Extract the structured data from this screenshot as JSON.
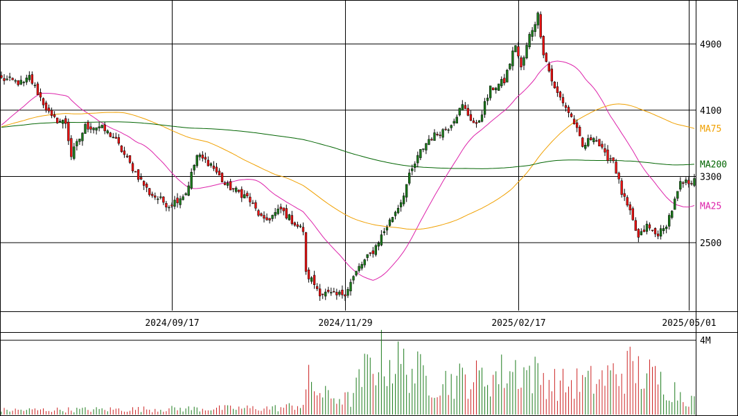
{
  "chart_data": {
    "type": "candlestick",
    "price_axis": {
      "ticks": [
        2500,
        3300,
        4100,
        4900
      ],
      "range": [
        1680,
        5430
      ]
    },
    "date_axis": {
      "labels": [
        {
          "text": "2024/09/17",
          "bar_index": 61
        },
        {
          "text": "2024/11/29",
          "bar_index": 123
        },
        {
          "text": "2025/02/17",
          "bar_index": 185
        },
        {
          "text": "2025/05/01",
          "bar_index": 246
        }
      ],
      "bar_count": 249
    },
    "volume_axis": {
      "ticks": [
        "4M"
      ],
      "tick_values": [
        4000000
      ],
      "max": 4400000
    },
    "moving_averages": [
      {
        "name": "MA25",
        "color": "#dd22aa",
        "last": 2950
      },
      {
        "name": "MA75",
        "color": "#f0a000",
        "last": 3880
      },
      {
        "name": "MA200",
        "color": "#006400",
        "last": 3450
      }
    ],
    "price_path": [
      [
        0,
        4480
      ],
      [
        8,
        4420
      ],
      [
        10,
        4500
      ],
      [
        14,
        4250
      ],
      [
        18,
        4000
      ],
      [
        23,
        3950
      ],
      [
        25,
        3550
      ],
      [
        30,
        3900
      ],
      [
        35,
        3900
      ],
      [
        40,
        3780
      ],
      [
        46,
        3450
      ],
      [
        53,
        3100
      ],
      [
        60,
        2950
      ],
      [
        66,
        3100
      ],
      [
        70,
        3550
      ],
      [
        75,
        3450
      ],
      [
        80,
        3200
      ],
      [
        88,
        3050
      ],
      [
        94,
        2750
      ],
      [
        100,
        2900
      ],
      [
        106,
        2700
      ],
      [
        108,
        2650
      ],
      [
        109,
        2120
      ],
      [
        111,
        2050
      ],
      [
        114,
        1900
      ],
      [
        120,
        1860
      ],
      [
        123,
        1900
      ],
      [
        128,
        2200
      ],
      [
        133,
        2400
      ],
      [
        138,
        2700
      ],
      [
        143,
        3000
      ],
      [
        146,
        3300
      ],
      [
        150,
        3600
      ],
      [
        153,
        3750
      ],
      [
        160,
        3900
      ],
      [
        165,
        4150
      ],
      [
        170,
        3900
      ],
      [
        175,
        4350
      ],
      [
        180,
        4450
      ],
      [
        184,
        4900
      ],
      [
        186,
        4600
      ],
      [
        189,
        5000
      ],
      [
        192,
        5250
      ],
      [
        194,
        4800
      ],
      [
        198,
        4350
      ],
      [
        201,
        4200
      ],
      [
        205,
        3950
      ],
      [
        208,
        3650
      ],
      [
        212,
        3800
      ],
      [
        216,
        3550
      ],
      [
        219,
        3500
      ],
      [
        222,
        3100
      ],
      [
        225,
        2850
      ],
      [
        228,
        2550
      ],
      [
        231,
        2700
      ],
      [
        234,
        2600
      ],
      [
        237,
        2650
      ],
      [
        240,
        2900
      ],
      [
        243,
        3200
      ],
      [
        247,
        3250
      ],
      [
        248,
        3300
      ]
    ],
    "volume_path": [
      [
        0,
        300000
      ],
      [
        40,
        350000
      ],
      [
        70,
        400000
      ],
      [
        100,
        450000
      ],
      [
        108,
        700000
      ],
      [
        110,
        2200000
      ],
      [
        115,
        1300000
      ],
      [
        125,
        1000000
      ],
      [
        130,
        2800000
      ],
      [
        135,
        3800000
      ],
      [
        145,
        3200000
      ],
      [
        155,
        2200000
      ],
      [
        175,
        2500000
      ],
      [
        185,
        3100000
      ],
      [
        200,
        2000000
      ],
      [
        212,
        2200000
      ],
      [
        225,
        3100000
      ],
      [
        235,
        2300000
      ],
      [
        248,
        900000
      ]
    ]
  }
}
